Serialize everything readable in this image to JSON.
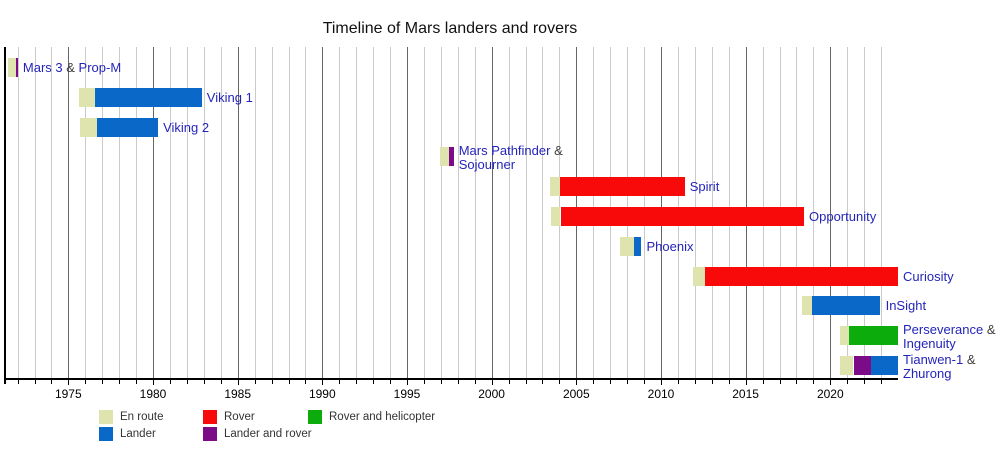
{
  "colors": {
    "en_route": "#dfe3ad",
    "lander": "#0a68c8",
    "rover": "#f90a0a",
    "lander_and_rover": "#7b0b87",
    "rover_and_helicopter": "#0cac0c",
    "link_text": "#2424bb",
    "separator_text": "#3d3d3d",
    "grid_minor": "#cacaca",
    "grid_major": "#666666",
    "axis": "#000000"
  },
  "chart_data": {
    "type": "bar",
    "variant": "gantt-timeline",
    "title": "Timeline of Mars landers and rovers",
    "x_axis": {
      "min": 1971.2,
      "max": 2024.0,
      "major_ticks": [
        1975,
        1980,
        1985,
        1990,
        1995,
        2000,
        2005,
        2010,
        2015,
        2020
      ],
      "minor_start": 1972,
      "minor_end": 2023,
      "minor_step": 1
    },
    "legend": [
      {
        "label": "En route",
        "type": "en_route",
        "row": 0,
        "col": 0
      },
      {
        "label": "Rover",
        "type": "rover",
        "row": 0,
        "col": 1
      },
      {
        "label": "Rover and helicopter",
        "type": "rover_and_helicopter",
        "row": 0,
        "col": 2
      },
      {
        "label": "Lander",
        "type": "lander",
        "row": 1,
        "col": 0
      },
      {
        "label": "Lander and rover",
        "type": "lander_and_rover",
        "row": 1,
        "col": 1
      }
    ],
    "missions": [
      {
        "label_lines": [
          [
            {
              "text": "Mars 3",
              "link": true
            },
            {
              "text": " & ",
              "link": false
            },
            {
              "text": "Prop-M",
              "link": true
            }
          ]
        ],
        "segments": [
          {
            "type": "en_route",
            "start": 1971.41,
            "end": 1971.9
          },
          {
            "type": "lander_and_rover",
            "start": 1971.9,
            "end": 1972.02
          }
        ]
      },
      {
        "label_lines": [
          [
            {
              "text": "Viking 1",
              "link": true
            }
          ]
        ],
        "segments": [
          {
            "type": "en_route",
            "start": 1975.64,
            "end": 1976.55
          },
          {
            "type": "lander",
            "start": 1976.55,
            "end": 1982.88
          }
        ]
      },
      {
        "label_lines": [
          [
            {
              "text": "Viking 2",
              "link": true
            }
          ]
        ],
        "segments": [
          {
            "type": "en_route",
            "start": 1975.69,
            "end": 1976.67
          },
          {
            "type": "lander",
            "start": 1976.67,
            "end": 1980.3
          }
        ]
      },
      {
        "label_lines": [
          [
            {
              "text": "Mars Pathfinder",
              "link": true
            },
            {
              "text": " &",
              "link": false
            }
          ],
          [
            {
              "text": "Sojourner",
              "link": true
            }
          ]
        ],
        "segments": [
          {
            "type": "en_route",
            "start": 1996.92,
            "end": 1997.5
          },
          {
            "type": "lander_and_rover",
            "start": 1997.5,
            "end": 1997.76
          }
        ]
      },
      {
        "label_lines": [
          [
            {
              "text": "Spirit",
              "link": true
            }
          ]
        ],
        "segments": [
          {
            "type": "en_route",
            "start": 2003.44,
            "end": 2004.01
          },
          {
            "type": "rover",
            "start": 2004.01,
            "end": 2011.4
          }
        ]
      },
      {
        "label_lines": [
          [
            {
              "text": "Opportunity",
              "link": true
            }
          ]
        ],
        "segments": [
          {
            "type": "en_route",
            "start": 2003.52,
            "end": 2004.07
          },
          {
            "type": "rover",
            "start": 2004.07,
            "end": 2018.45
          }
        ]
      },
      {
        "label_lines": [
          [
            {
              "text": "Phoenix",
              "link": true
            }
          ]
        ],
        "segments": [
          {
            "type": "en_route",
            "start": 2007.59,
            "end": 2008.4
          },
          {
            "type": "lander",
            "start": 2008.4,
            "end": 2008.85
          }
        ]
      },
      {
        "label_lines": [
          [
            {
              "text": "Curiosity",
              "link": true
            }
          ]
        ],
        "segments": [
          {
            "type": "en_route",
            "start": 2011.9,
            "end": 2012.6
          },
          {
            "type": "rover",
            "start": 2012.6,
            "end": 2024.0
          }
        ]
      },
      {
        "label_lines": [
          [
            {
              "text": "InSight",
              "link": true
            }
          ]
        ],
        "segments": [
          {
            "type": "en_route",
            "start": 2018.34,
            "end": 2018.9
          },
          {
            "type": "lander",
            "start": 2018.9,
            "end": 2022.97
          }
        ]
      },
      {
        "label_lines": [
          [
            {
              "text": "Perseverance",
              "link": true
            },
            {
              "text": " &",
              "link": false
            }
          ],
          [
            {
              "text": "Ingenuity",
              "link": true
            }
          ]
        ],
        "segments": [
          {
            "type": "en_route",
            "start": 2020.58,
            "end": 2021.13
          },
          {
            "type": "rover_and_helicopter",
            "start": 2021.13,
            "end": 2024.0
          }
        ]
      },
      {
        "label_lines": [
          [
            {
              "text": "Tianwen-1",
              "link": true
            },
            {
              "text": " &",
              "link": false
            }
          ],
          [
            {
              "text": "Zhurong",
              "link": true
            }
          ]
        ],
        "segments": [
          {
            "type": "en_route",
            "start": 2020.56,
            "end": 2021.37
          },
          {
            "type": "lander_and_rover",
            "start": 2021.37,
            "end": 2022.4
          },
          {
            "type": "lander",
            "start": 2022.4,
            "end": 2024.0
          }
        ]
      }
    ]
  }
}
